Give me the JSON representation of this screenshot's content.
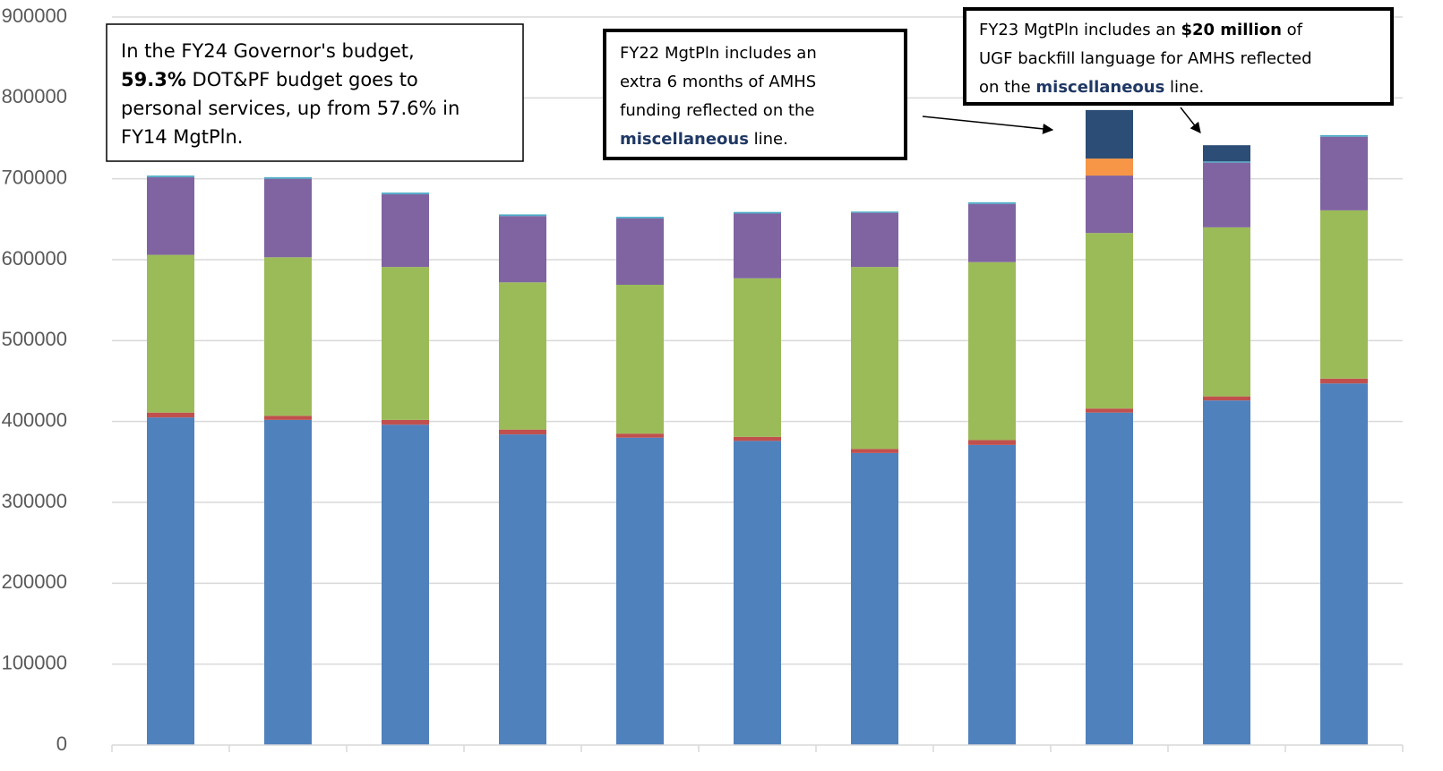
{
  "chart_data": {
    "type": "stacked_bar",
    "categories": [
      null,
      null,
      null,
      null,
      null,
      null,
      null,
      null,
      null,
      null,
      null
    ],
    "series": [
      {
        "color": "#4f81bd",
        "values": [
          405000,
          402000,
          396000,
          384000,
          380000,
          376000,
          361000,
          371000,
          411000,
          426000,
          447000
        ]
      },
      {
        "color": "#c0504d",
        "values": [
          6000,
          5000,
          6000,
          6000,
          5000,
          5000,
          5000,
          6000,
          5000,
          5000,
          6000
        ]
      },
      {
        "color": "#9bbb59",
        "values": [
          195000,
          196000,
          189000,
          182000,
          184000,
          196000,
          225000,
          220000,
          217000,
          209000,
          208000
        ]
      },
      {
        "color": "#8064a2",
        "values": [
          96000,
          97000,
          90000,
          82000,
          82000,
          80000,
          67000,
          72000,
          71000,
          80000,
          91000
        ]
      },
      {
        "color": "#4bacc6",
        "values": [
          2000,
          2000,
          2000,
          2000,
          2000,
          2000,
          1500,
          2000,
          0,
          1500,
          2000
        ]
      },
      {
        "color": "#f79646",
        "values": [
          0,
          0,
          0,
          0,
          0,
          0,
          0,
          0,
          21000,
          0,
          0
        ]
      },
      {
        "color": "#2c4d75",
        "values": [
          0,
          0,
          0,
          0,
          0,
          0,
          0,
          0,
          60000,
          20000,
          0
        ]
      }
    ],
    "ylim": [
      0,
      900000
    ],
    "yticks": [
      0,
      100000,
      200000,
      300000,
      400000,
      500000,
      600000,
      700000,
      800000,
      900000
    ],
    "grid": true,
    "annotations": [
      {
        "lines": [
          [
            {
              "text": "In the FY24 Governor's budget,"
            }
          ],
          [
            {
              "text": "59.3%",
              "bold": true
            },
            {
              "text": " DOT&PF budget goes to"
            }
          ],
          [
            {
              "text": "personal services, up from 57.6% in"
            }
          ],
          [
            {
              "text": "FY14 MgtPln."
            }
          ]
        ]
      },
      {
        "lines": [
          [
            {
              "text": "FY22 MgtPln includes an"
            }
          ],
          [
            {
              "text": "extra 6 months of AMHS"
            }
          ],
          [
            {
              "text": "funding reflected on the"
            }
          ],
          [
            {
              "text": "miscellaneous",
              "bold": true,
              "color": "#1f3864"
            },
            {
              "text": " line."
            }
          ]
        ]
      },
      {
        "lines": [
          [
            {
              "text": "FY23 MgtPln includes an "
            },
            {
              "text": "$20 million",
              "bold": true
            },
            {
              "text": " of"
            }
          ],
          [
            {
              "text": "UGF backfill language for AMHS reflected"
            }
          ],
          [
            {
              "text": "on the "
            },
            {
              "text": "miscellaneous",
              "bold": true,
              "color": "#1f3864"
            },
            {
              "text": " line."
            }
          ]
        ]
      }
    ]
  }
}
